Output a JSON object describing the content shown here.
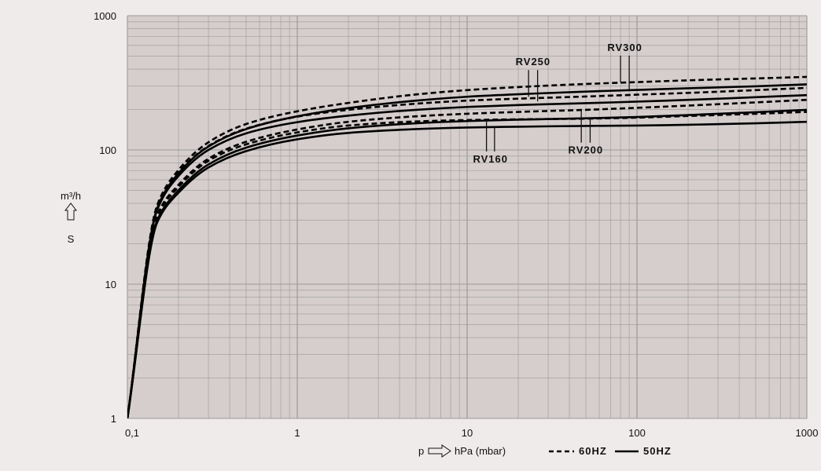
{
  "chart_data": {
    "type": "line",
    "xscale": "log",
    "yscale": "log",
    "xlim": [
      0.1,
      1000
    ],
    "ylim": [
      1,
      1000
    ],
    "grid": true,
    "legend_position": "bottom",
    "x_ticks": [
      "0,1",
      "1",
      "10",
      "100",
      "1000"
    ],
    "y_ticks": [
      "1",
      "10",
      "100",
      "1000"
    ],
    "ylabel": {
      "unit": "m³/h",
      "symbol": "S"
    },
    "xlabel": {
      "symbol": "p",
      "unit": "hPa (mbar)"
    },
    "legend": [
      {
        "label": "60HZ",
        "style": "dashed"
      },
      {
        "label": "50HZ",
        "style": "solid"
      }
    ],
    "colors": {
      "background": "#efebea",
      "plot_area": "#d6cdcd",
      "grid_line": "#9a9a9a",
      "curve": "#000000"
    },
    "series": [
      {
        "model": "RV160",
        "frequency": "50HZ",
        "style": "solid",
        "x": [
          0.1,
          0.15,
          0.2,
          0.3,
          0.5,
          1,
          2,
          5,
          10,
          20,
          50,
          100,
          200,
          500,
          1000
        ],
        "y": [
          1,
          29,
          48,
          74,
          98,
          120,
          134,
          143,
          147,
          149,
          151,
          152,
          154,
          158,
          162
        ]
      },
      {
        "model": "RV160",
        "frequency": "60HZ",
        "style": "dashed",
        "x": [
          0.1,
          0.15,
          0.2,
          0.3,
          0.5,
          1,
          2,
          5,
          10,
          20,
          50,
          100,
          200,
          500,
          1000
        ],
        "y": [
          1,
          32,
          53,
          83,
          110,
          135,
          152,
          163,
          167,
          169,
          171,
          174,
          179,
          186,
          192
        ]
      },
      {
        "model": "RV200",
        "frequency": "50HZ",
        "style": "solid",
        "x": [
          0.1,
          0.15,
          0.2,
          0.3,
          0.5,
          1,
          2,
          5,
          10,
          20,
          50,
          100,
          200,
          500,
          1000
        ],
        "y": [
          1,
          30,
          50,
          78,
          104,
          128,
          145,
          158,
          164,
          168,
          172,
          176,
          182,
          191,
          199
        ]
      },
      {
        "model": "RV200",
        "frequency": "60HZ",
        "style": "dashed",
        "x": [
          0.1,
          0.15,
          0.2,
          0.3,
          0.5,
          1,
          2,
          5,
          10,
          20,
          50,
          100,
          200,
          500,
          1000
        ],
        "y": [
          1,
          33,
          55,
          86,
          115,
          142,
          162,
          178,
          186,
          192,
          199,
          206,
          214,
          226,
          236
        ]
      },
      {
        "model": "RV250",
        "frequency": "50HZ",
        "style": "solid",
        "x": [
          0.1,
          0.15,
          0.2,
          0.3,
          0.5,
          1,
          2,
          5,
          10,
          20,
          50,
          100,
          200,
          500,
          1000
        ],
        "y": [
          1,
          36,
          64,
          100,
          133,
          161,
          180,
          199,
          209,
          216,
          223,
          229,
          236,
          247,
          256
        ]
      },
      {
        "model": "RV250",
        "frequency": "60HZ",
        "style": "dashed",
        "x": [
          0.1,
          0.15,
          0.2,
          0.3,
          0.5,
          1,
          2,
          5,
          10,
          20,
          50,
          100,
          200,
          500,
          1000
        ],
        "y": [
          1,
          38,
          68,
          107,
          144,
          177,
          199,
          221,
          233,
          241,
          250,
          258,
          266,
          279,
          290
        ]
      },
      {
        "model": "RV300",
        "frequency": "50HZ",
        "style": "solid",
        "x": [
          0.1,
          0.15,
          0.2,
          0.3,
          0.5,
          1,
          2,
          5,
          10,
          20,
          50,
          100,
          200,
          500,
          1000
        ],
        "y": [
          1,
          37,
          67,
          106,
          143,
          178,
          205,
          233,
          249,
          260,
          272,
          280,
          288,
          298,
          308
        ]
      },
      {
        "model": "RV300",
        "frequency": "60HZ",
        "style": "dashed",
        "x": [
          0.1,
          0.15,
          0.2,
          0.3,
          0.5,
          1,
          2,
          5,
          10,
          20,
          50,
          100,
          200,
          500,
          1000
        ],
        "y": [
          1,
          39,
          71,
          114,
          156,
          194,
          224,
          259,
          279,
          294,
          310,
          320,
          330,
          341,
          350
        ]
      }
    ],
    "annotations": [
      {
        "label": "RV250",
        "pointers": [
          {
            "x": 23,
            "y": 249
          },
          {
            "x": 26,
            "y": 230
          }
        ]
      },
      {
        "label": "RV300",
        "pointers": [
          {
            "x": 80,
            "y": 319
          },
          {
            "x": 90,
            "y": 281
          }
        ]
      },
      {
        "label": "RV160",
        "pointers": [
          {
            "x": 13,
            "y": 167
          },
          {
            "x": 14.5,
            "y": 148
          }
        ]
      },
      {
        "label": "RV200",
        "pointers": [
          {
            "x": 47,
            "y": 199
          },
          {
            "x": 53,
            "y": 172
          }
        ]
      }
    ]
  }
}
